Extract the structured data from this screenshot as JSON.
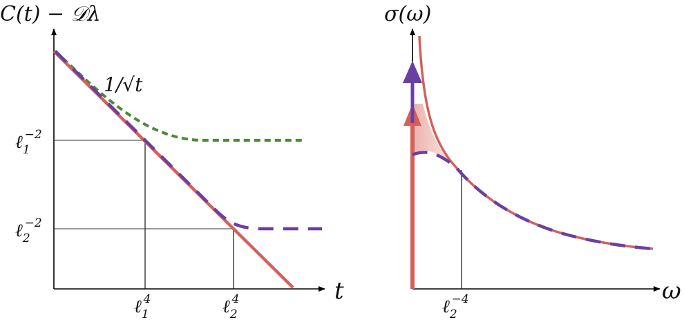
{
  "left_panel": {
    "y_axis_label": "C(t) − 𝒟λ",
    "x_axis_label": "t",
    "curve_label": "1/√t",
    "y_ticks": [
      {
        "base": "ℓ",
        "sub": "1",
        "sup": "−2"
      },
      {
        "base": "ℓ",
        "sub": "2",
        "sup": "−2"
      }
    ],
    "x_ticks": [
      {
        "base": "ℓ",
        "sub": "1",
        "sup": "4"
      },
      {
        "base": "ℓ",
        "sub": "2",
        "sup": "4"
      }
    ]
  },
  "right_panel": {
    "y_axis_label": "σ(ω)",
    "x_axis_label": "ω",
    "x_ticks": [
      {
        "base": "ℓ",
        "sub": "2",
        "sup": "−4"
      }
    ]
  },
  "colors": {
    "red": "#d5605a",
    "purple": "#6b3fa0",
    "green": "#4a8a3a",
    "label_red": "#dd1111",
    "axis": "#000000",
    "guide": "#333333"
  }
}
